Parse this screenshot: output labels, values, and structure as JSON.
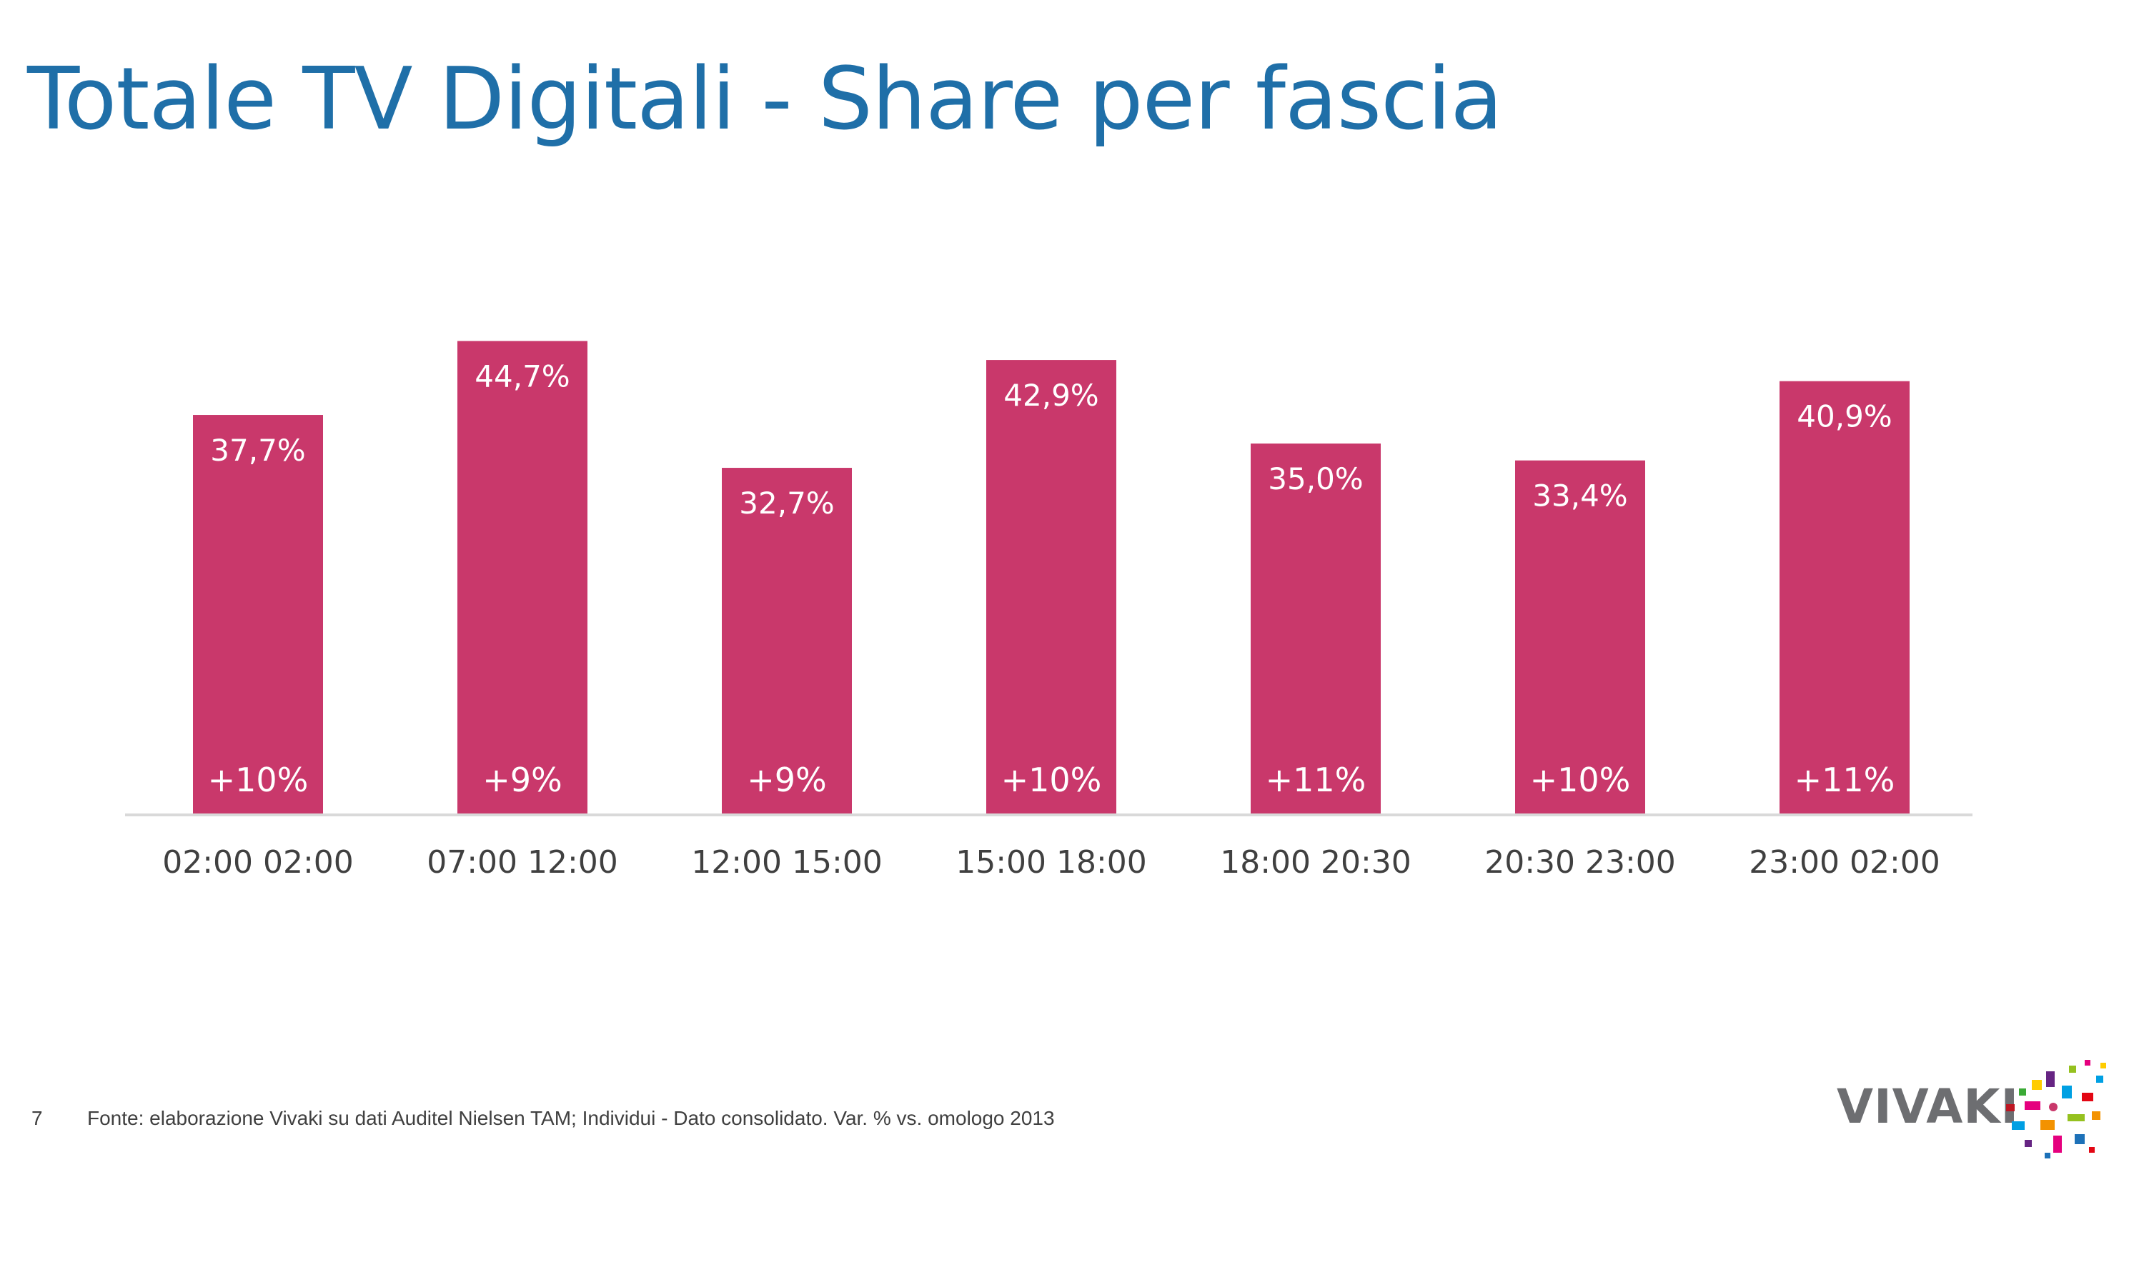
{
  "title": "Totale TV Digitali - Share per fascia",
  "chart_data": {
    "type": "bar",
    "categories": [
      "02:00 02:00",
      "07:00 12:00",
      "12:00 15:00",
      "15:00 18:00",
      "18:00 20:30",
      "20:30 23:00",
      "23:00 02:00"
    ],
    "values": [
      37.7,
      44.7,
      32.7,
      42.9,
      35.0,
      33.4,
      40.9
    ],
    "value_labels": [
      "37,7%",
      "44,7%",
      "32,7%",
      "42,9%",
      "35,0%",
      "33,4%",
      "40,9%"
    ],
    "variation_labels": [
      "+10%",
      "+9%",
      "+9%",
      "+10%",
      "+11%",
      "+10%",
      "+11%"
    ],
    "bar_color": "#c9386b",
    "ylim": [
      0,
      50
    ],
    "grid": false,
    "legend": "none",
    "xlabel": "",
    "ylabel": ""
  },
  "footer": {
    "page_number": "7",
    "source": "Fonte: elaborazione Vivaki su dati Auditel Nielsen TAM; Individui - Dato consolidato. Var. % vs. omologo 2013"
  },
  "logo": {
    "text": "VIVAKI"
  },
  "colors": {
    "title": "#1f6fa8",
    "bars": "#c9386b",
    "axis": "#d9d9d9",
    "text": "#404040"
  }
}
